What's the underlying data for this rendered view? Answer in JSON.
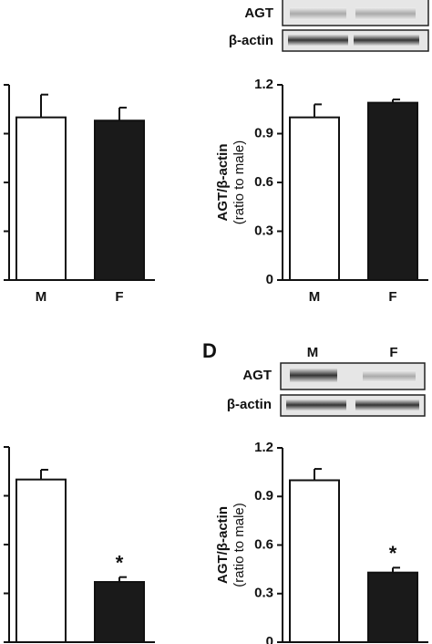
{
  "chart_data": [
    {
      "type": "bar",
      "categories": [
        "M",
        "F"
      ],
      "values": [
        1.0,
        0.98
      ],
      "errors": [
        0.14,
        0.08
      ],
      "colors": [
        "#ffffff",
        "#1a1a1a"
      ],
      "ylim": [
        0,
        1.2
      ],
      "yticks": [
        0,
        0.3,
        0.6,
        0.9,
        1.2
      ],
      "tick_labels": false
    },
    {
      "type": "bar",
      "categories": [
        "M",
        "F"
      ],
      "values": [
        1.0,
        1.09
      ],
      "errors": [
        0.08,
        0.02
      ],
      "colors": [
        "#ffffff",
        "#1a1a1a"
      ],
      "ylim": [
        0,
        1.2
      ],
      "yticks": [
        0,
        0.3,
        0.6,
        0.9,
        1.2
      ],
      "tick_labels": true,
      "ylabel": "AGT/β-actin",
      "ylabel_sub": "(ratio to male)"
    },
    {
      "type": "bar",
      "categories": [
        null,
        null
      ],
      "values": [
        1.0,
        0.37
      ],
      "errors": [
        0.06,
        0.03
      ],
      "colors": [
        "#ffffff",
        "#1a1a1a"
      ],
      "ylim": [
        0,
        1.2
      ],
      "yticks": [
        0,
        0.3,
        0.6,
        0.9,
        1.2
      ],
      "tick_labels": false,
      "annotations": [
        null,
        "*"
      ]
    },
    {
      "type": "bar",
      "categories": [
        null,
        null
      ],
      "values": [
        1.0,
        0.43
      ],
      "errors": [
        0.07,
        0.03
      ],
      "colors": [
        "#ffffff",
        "#1a1a1a"
      ],
      "ylim": [
        0,
        1.2
      ],
      "yticks": [
        0,
        0.3,
        0.6,
        0.9,
        1.2
      ],
      "tick_labels": true,
      "ylabel": "AGT/β-actin",
      "ylabel_sub": "(ratio to male)",
      "annotations": [
        null,
        "*"
      ]
    }
  ],
  "blots": {
    "top": {
      "rows": [
        "AGT",
        "β-actin"
      ]
    },
    "d": {
      "panel": "D",
      "lanes": [
        "M",
        "F"
      ],
      "rows": [
        "AGT",
        "β-actin"
      ]
    }
  }
}
